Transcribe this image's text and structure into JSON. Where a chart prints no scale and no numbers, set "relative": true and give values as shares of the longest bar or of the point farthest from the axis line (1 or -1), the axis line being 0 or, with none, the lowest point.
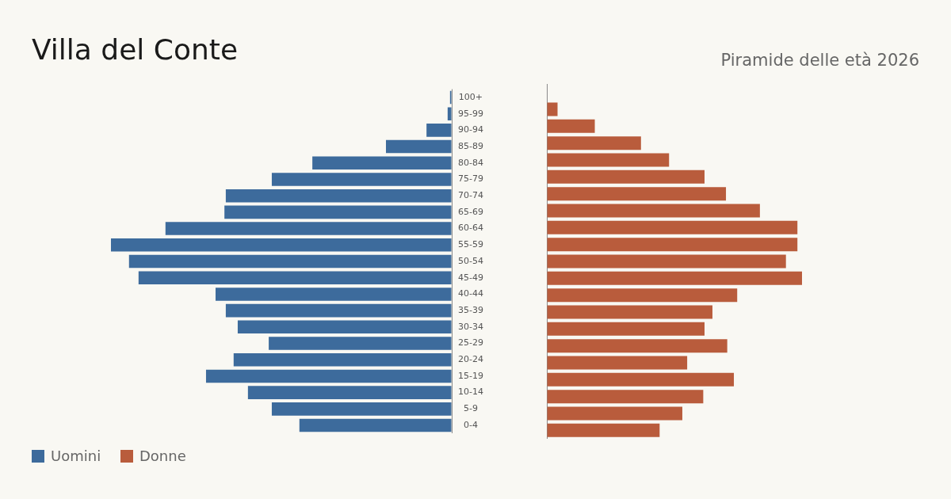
{
  "chart_data": [
    {
      "type": "bar",
      "orientation": "horizontal",
      "relative": true,
      "title": "Villa del Conte",
      "legend": "bottom left",
      "categories": [
        "100+",
        "95-99",
        "90-94",
        "85-89",
        "80-84",
        "75-79",
        "70-74",
        "65-69",
        "60-64",
        "55-59",
        "50-54",
        "45-49",
        "40-44",
        "35-39",
        "30-34",
        "25-29",
        "20-24",
        "15-19",
        "10-14",
        "5-9",
        "0-4"
      ],
      "series": [
        {
          "name": "Uomini",
          "color": "#3d6b9c",
          "values": [
            -0.005,
            -0.012,
            -0.074,
            -0.193,
            -0.409,
            -0.528,
            -0.663,
            -0.667,
            -0.84,
            -1,
            -0.947,
            -0.919,
            -0.693,
            -0.663,
            -0.628,
            -0.537,
            -0.64,
            -0.721,
            -0.598,
            -0.528,
            -0.447
          ]
        }
      ]
    },
    {
      "type": "bar",
      "orientation": "horizontal",
      "relative": true,
      "subtitle": "Piramide delle età 2026",
      "legend": "bottom left",
      "tick_labels": false,
      "series": [
        {
          "name": "Donne",
          "color": "#b95c3c",
          "values": [
            0,
            0.042,
            0.188,
            0.369,
            0.479,
            0.618,
            0.702,
            0.835,
            0.982,
            0.982,
            0.937,
            1,
            0.746,
            0.649,
            0.618,
            0.707,
            0.55,
            0.733,
            0.613,
            0.531,
            0.442
          ]
        }
      ]
    }
  ]
}
